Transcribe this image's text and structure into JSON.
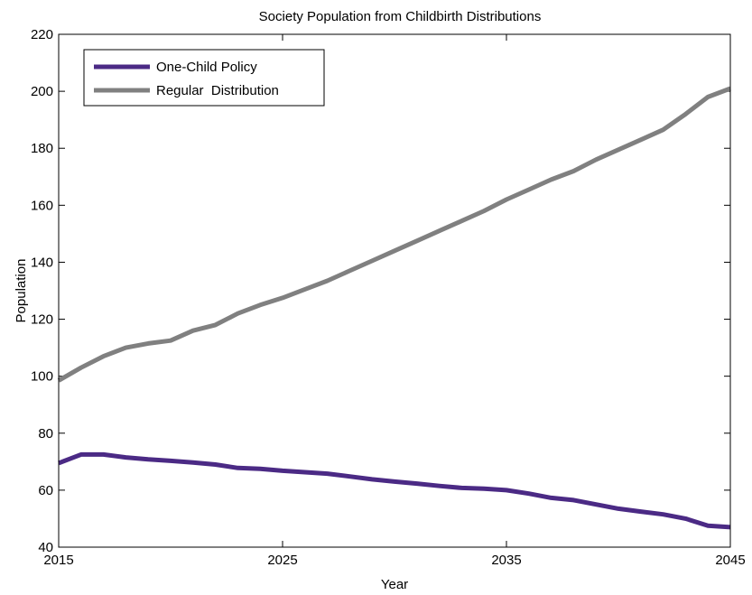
{
  "chart_data": {
    "type": "line",
    "title": "Society Population from Childbirth Distributions",
    "xlabel": "Year",
    "ylabel": "Population",
    "xlim": [
      2015,
      2045
    ],
    "ylim": [
      40,
      220
    ],
    "xticks": [
      2015,
      2025,
      2035,
      2045
    ],
    "yticks": [
      40,
      60,
      80,
      100,
      120,
      140,
      160,
      180,
      200,
      220
    ],
    "grid": false,
    "legend_position": "top-left",
    "series": [
      {
        "name": "One-Child Policy",
        "color": "#4b2a85",
        "x": [
          2015,
          2016,
          2017,
          2018,
          2019,
          2020,
          2021,
          2022,
          2023,
          2024,
          2025,
          2026,
          2027,
          2028,
          2029,
          2030,
          2031,
          2032,
          2033,
          2034,
          2035,
          2036,
          2037,
          2038,
          2039,
          2040,
          2041,
          2042,
          2043,
          2044,
          2045
        ],
        "y": [
          69.5,
          72.5,
          72.5,
          71.5,
          70.8,
          70.3,
          69.7,
          69.0,
          67.8,
          67.5,
          66.8,
          66.3,
          65.8,
          64.8,
          63.8,
          63.0,
          62.3,
          61.5,
          60.8,
          60.5,
          60.0,
          58.8,
          57.3,
          56.5,
          55.0,
          53.5,
          52.5,
          51.5,
          50.0,
          47.5,
          47.0
        ]
      },
      {
        "name": "Regular  Distribution",
        "color": "#808080",
        "x": [
          2015,
          2016,
          2017,
          2018,
          2019,
          2020,
          2021,
          2022,
          2023,
          2024,
          2025,
          2026,
          2027,
          2028,
          2029,
          2030,
          2031,
          2032,
          2033,
          2034,
          2035,
          2036,
          2037,
          2038,
          2039,
          2040,
          2041,
          2042,
          2043,
          2044,
          2045
        ],
        "y": [
          98.5,
          103.0,
          107.0,
          110.0,
          111.5,
          112.5,
          116.0,
          118.0,
          122.0,
          125.0,
          127.5,
          130.5,
          133.5,
          137.0,
          140.5,
          144.0,
          147.5,
          151.0,
          154.5,
          158.0,
          162.0,
          165.5,
          169.0,
          172.0,
          176.0,
          179.5,
          183.0,
          186.5,
          192.0,
          198.0,
          201.0
        ]
      }
    ]
  }
}
